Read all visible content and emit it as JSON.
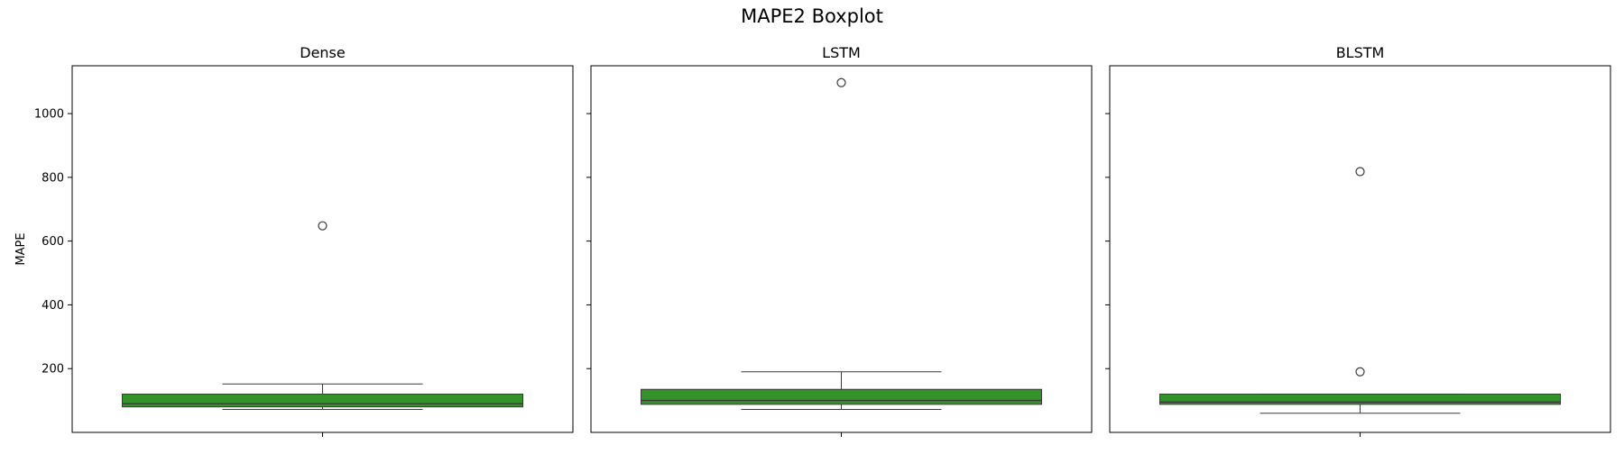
{
  "figure": {
    "title": "MAPE2 Boxplot",
    "box_color": "#33922a"
  },
  "chart_data": [
    {
      "type": "box",
      "title": "Dense",
      "xlabel": "",
      "ylabel": "MAPE",
      "ylim": [
        0,
        1150
      ],
      "yticks": [
        200,
        400,
        600,
        800,
        1000
      ],
      "box": {
        "whisker_low": 72,
        "q1": 80,
        "median": 90,
        "q3": 120,
        "whisker_high": 152
      },
      "outliers": [
        648
      ]
    },
    {
      "type": "box",
      "title": "LSTM",
      "xlabel": "",
      "ylabel": "",
      "ylim": [
        0,
        1150
      ],
      "yticks": [
        200,
        400,
        600,
        800,
        1000
      ],
      "box": {
        "whisker_low": 72,
        "q1": 88,
        "median": 100,
        "q3": 135,
        "whisker_high": 190
      },
      "outliers": [
        1097
      ]
    },
    {
      "type": "box",
      "title": "BLSTM",
      "xlabel": "",
      "ylabel": "",
      "ylim": [
        0,
        1150
      ],
      "yticks": [
        200,
        400,
        600,
        800,
        1000
      ],
      "box": {
        "whisker_low": 60,
        "q1": 88,
        "median": 95,
        "q3": 120,
        "whisker_high": 120
      },
      "outliers": [
        818,
        190
      ]
    }
  ]
}
